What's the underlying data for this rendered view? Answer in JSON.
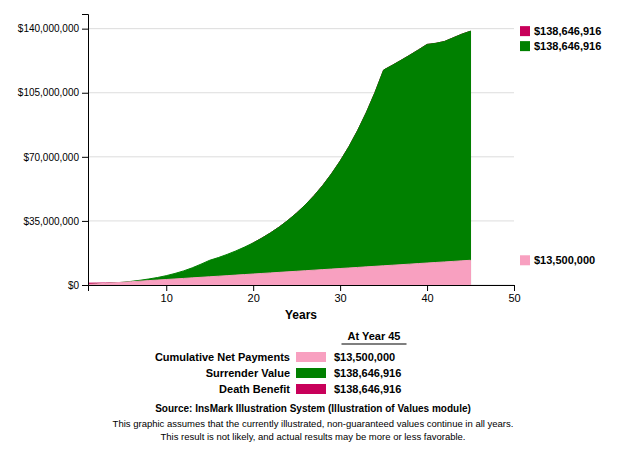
{
  "chart_data": {
    "type": "area",
    "xlabel": "Years",
    "x": [
      1,
      2,
      3,
      4,
      5,
      6,
      7,
      8,
      9,
      10,
      11,
      12,
      13,
      14,
      15,
      16,
      17,
      18,
      19,
      20,
      21,
      22,
      23,
      24,
      25,
      26,
      27,
      28,
      29,
      30,
      31,
      32,
      33,
      34,
      35,
      36,
      37,
      38,
      39,
      40,
      41,
      42,
      43,
      44,
      45
    ],
    "xlim": [
      1,
      50
    ],
    "xticks": [
      10,
      20,
      30,
      40,
      50
    ],
    "ylim": [
      0,
      148000000
    ],
    "yticks": [
      {
        "value": 0,
        "label": "$0"
      },
      {
        "value": 35000000,
        "label": "$35,000,000"
      },
      {
        "value": 70000000,
        "label": "$70,000,000"
      },
      {
        "value": 105000000,
        "label": "$105,000,000"
      },
      {
        "value": 140000000,
        "label": "$140,000,000"
      }
    ],
    "grid": true,
    "series": [
      {
        "name": "Death Benefit",
        "color": "#C8005A",
        "end_label": "$138,646,916",
        "legend_value": "$138,646,916",
        "values": [
          1000000,
          1050000,
          1100000,
          1200000,
          1300000,
          1450000,
          1600000,
          1800000,
          2100000,
          2500000,
          3000000,
          3800000,
          5000000,
          7000000,
          10000000,
          12000000,
          14000000,
          16500000,
          19500000,
          23000000,
          25600000,
          28500000,
          31700000,
          35300000,
          39300000,
          43800000,
          48800000,
          54400000,
          60700000,
          67700000,
          75500000,
          84300000,
          94100000,
          105100000,
          117400000,
          120000000,
          122700000,
          125500000,
          128400000,
          131400000,
          132000000,
          133000000,
          135000000,
          137000000,
          138646916
        ]
      },
      {
        "name": "Surrender Value",
        "color": "#008000",
        "end_label": "$138,646,916",
        "legend_value": "$138,646,916",
        "values": [
          200000,
          450000,
          750000,
          1100000,
          1500000,
          2000000,
          2600000,
          3300000,
          4100000,
          5100000,
          6300000,
          7700000,
          9400000,
          11400000,
          13500000,
          15000000,
          16700000,
          18600000,
          20700000,
          23000000,
          25600000,
          28500000,
          31700000,
          35300000,
          39300000,
          43800000,
          48800000,
          54400000,
          60700000,
          67700000,
          75500000,
          84300000,
          94100000,
          105100000,
          117400000,
          120000000,
          122700000,
          125500000,
          128400000,
          131400000,
          132000000,
          133000000,
          135000000,
          137000000,
          138646916
        ]
      },
      {
        "name": "Cumulative Net Payments",
        "color": "#F8A0C0",
        "end_label": "$13,500,000",
        "legend_value": "$13,500,000",
        "values": [
          300000,
          600000,
          900000,
          1200000,
          1500000,
          1800000,
          2100000,
          2400000,
          2700000,
          3000000,
          3300000,
          3600000,
          3900000,
          4200000,
          4500000,
          4800000,
          5100000,
          5400000,
          5700000,
          6000000,
          6300000,
          6600000,
          6900000,
          7200000,
          7500000,
          7800000,
          8100000,
          8400000,
          8700000,
          9000000,
          9300000,
          9600000,
          9900000,
          10200000,
          10500000,
          10800000,
          11100000,
          11400000,
          11700000,
          12000000,
          12300000,
          12600000,
          12900000,
          13200000,
          13500000
        ]
      }
    ],
    "legend_title": "At Year 45",
    "source": "Source: InsMark Illustration System (Illustration of Values module)",
    "notes": [
      "This graphic assumes that the currently illustrated, non-guaranteed values continue in all years.",
      "This result is not likely, and actual results may be more or less favorable."
    ]
  }
}
